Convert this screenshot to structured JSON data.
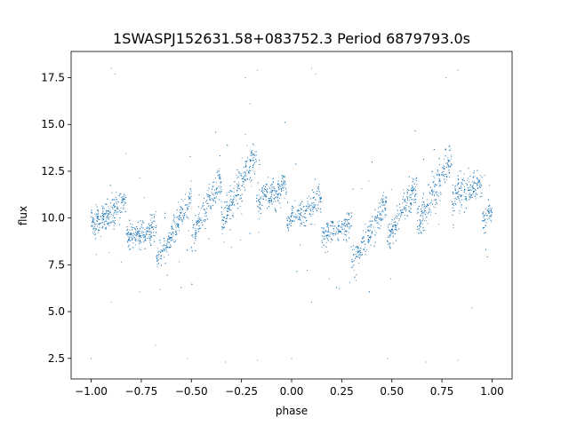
{
  "chart_data": {
    "type": "scatter",
    "title": "1SWASPJ152631.58+083752.3 Period 6879793.0s",
    "xlabel": "phase",
    "ylabel": "flux",
    "xlim": [
      -1.1,
      1.1
    ],
    "ylim": [
      1.4,
      18.9
    ],
    "x_ticks": [
      -1.0,
      -0.75,
      -0.5,
      -0.25,
      0.0,
      0.25,
      0.5,
      0.75,
      1.0
    ],
    "x_tick_labels": [
      "−1.00",
      "−0.75",
      "−0.50",
      "−0.25",
      "0.00",
      "0.25",
      "0.50",
      "0.75",
      "1.00"
    ],
    "y_ticks": [
      2.5,
      5.0,
      7.5,
      10.0,
      12.5,
      15.0,
      17.5
    ],
    "y_tick_labels": [
      "2.5",
      "5.0",
      "7.5",
      "10.0",
      "12.5",
      "15.0",
      "17.5"
    ],
    "grid": false,
    "marker_color": "#1f77b4",
    "profile": [
      {
        "phase": -1.0,
        "flux": 11.0,
        "spread": 0.7
      },
      {
        "phase": -0.95,
        "flux": 10.5,
        "spread": 0.8
      },
      {
        "phase": -0.9,
        "flux": 10.2,
        "spread": 1.0
      },
      {
        "phase": -0.85,
        "flux": 10.0,
        "spread": 0.9
      },
      {
        "phase": -0.8,
        "flux": 9.8,
        "spread": 0.8
      },
      {
        "phase": -0.75,
        "flux": 9.2,
        "spread": 0.8
      },
      {
        "phase": -0.7,
        "flux": 8.8,
        "spread": 1.0
      },
      {
        "phase": -0.65,
        "flux": 9.0,
        "spread": 0.9
      },
      {
        "phase": -0.6,
        "flux": 9.3,
        "spread": 0.8
      },
      {
        "phase": -0.55,
        "flux": 9.8,
        "spread": 0.9
      },
      {
        "phase": -0.5,
        "flux": 10.0,
        "spread": 1.0
      },
      {
        "phase": -0.45,
        "flux": 10.5,
        "spread": 1.0
      },
      {
        "phase": -0.4,
        "flux": 10.8,
        "spread": 1.0
      },
      {
        "phase": -0.35,
        "flux": 11.0,
        "spread": 1.1
      },
      {
        "phase": -0.3,
        "flux": 11.3,
        "spread": 1.2
      },
      {
        "phase": -0.25,
        "flux": 11.8,
        "spread": 1.3
      },
      {
        "phase": -0.2,
        "flux": 12.2,
        "spread": 1.3
      },
      {
        "phase": -0.15,
        "flux": 12.0,
        "spread": 1.2
      },
      {
        "phase": -0.1,
        "flux": 11.3,
        "spread": 1.0
      },
      {
        "phase": -0.05,
        "flux": 11.0,
        "spread": 0.8
      },
      {
        "phase": 0.0,
        "flux": 11.0,
        "spread": 0.7
      },
      {
        "phase": 0.05,
        "flux": 10.5,
        "spread": 0.8
      },
      {
        "phase": 0.1,
        "flux": 10.2,
        "spread": 1.0
      },
      {
        "phase": 0.15,
        "flux": 10.0,
        "spread": 0.9
      },
      {
        "phase": 0.2,
        "flux": 9.8,
        "spread": 0.8
      },
      {
        "phase": 0.25,
        "flux": 9.2,
        "spread": 0.8
      },
      {
        "phase": 0.3,
        "flux": 8.8,
        "spread": 1.0
      },
      {
        "phase": 0.35,
        "flux": 9.0,
        "spread": 0.9
      },
      {
        "phase": 0.4,
        "flux": 9.3,
        "spread": 0.8
      },
      {
        "phase": 0.45,
        "flux": 9.8,
        "spread": 0.9
      },
      {
        "phase": 0.5,
        "flux": 10.0,
        "spread": 1.0
      },
      {
        "phase": 0.55,
        "flux": 10.5,
        "spread": 1.0
      },
      {
        "phase": 0.6,
        "flux": 10.8,
        "spread": 1.0
      },
      {
        "phase": 0.65,
        "flux": 11.0,
        "spread": 1.1
      },
      {
        "phase": 0.7,
        "flux": 11.3,
        "spread": 1.2
      },
      {
        "phase": 0.75,
        "flux": 11.8,
        "spread": 1.3
      },
      {
        "phase": 0.8,
        "flux": 12.2,
        "spread": 1.3
      },
      {
        "phase": 0.85,
        "flux": 12.0,
        "spread": 1.2
      },
      {
        "phase": 0.9,
        "flux": 11.3,
        "spread": 1.0
      },
      {
        "phase": 0.95,
        "flux": 11.0,
        "spread": 0.8
      },
      {
        "phase": 1.0,
        "flux": 11.0,
        "spread": 0.7
      }
    ],
    "outliers": [
      {
        "phase": -1.0,
        "flux": 2.5
      },
      {
        "phase": -0.9,
        "flux": 18.0
      },
      {
        "phase": -0.88,
        "flux": 17.7
      },
      {
        "phase": -0.9,
        "flux": 5.5
      },
      {
        "phase": -0.68,
        "flux": 3.2
      },
      {
        "phase": -0.52,
        "flux": 2.5
      },
      {
        "phase": -0.33,
        "flux": 2.3
      },
      {
        "phase": -0.23,
        "flux": 17.5
      },
      {
        "phase": -0.17,
        "flux": 17.9
      },
      {
        "phase": -0.17,
        "flux": 2.4
      },
      {
        "phase": 0.0,
        "flux": 2.5
      },
      {
        "phase": 0.1,
        "flux": 18.0
      },
      {
        "phase": 0.12,
        "flux": 17.7
      },
      {
        "phase": 0.1,
        "flux": 5.5
      },
      {
        "phase": 0.48,
        "flux": 2.5
      },
      {
        "phase": 0.67,
        "flux": 2.3
      },
      {
        "phase": 0.77,
        "flux": 17.5
      },
      {
        "phase": 0.83,
        "flux": 17.9
      },
      {
        "phase": 0.83,
        "flux": 2.4
      },
      {
        "phase": 0.9,
        "flux": 5.2
      }
    ]
  }
}
